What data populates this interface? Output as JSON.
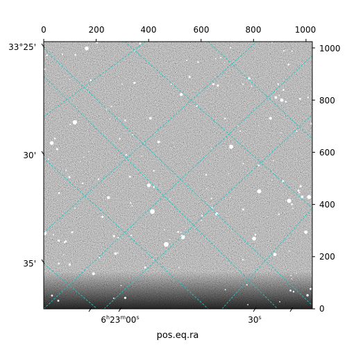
{
  "figure": {
    "xlabel": "pos.eq.ra",
    "pixel_axes": {
      "x_ticks": [
        "0",
        "200",
        "400",
        "600",
        "800",
        "1000"
      ],
      "y_ticks": [
        "0",
        "200",
        "400",
        "600",
        "800",
        "1000"
      ],
      "x_values": [
        0,
        200,
        400,
        600,
        800,
        1000
      ],
      "y_values": [
        0,
        200,
        400,
        600,
        800,
        1000
      ],
      "xlim": [
        0,
        1024
      ],
      "ylim": [
        0,
        1024
      ]
    },
    "world_axes": {
      "dec_ticks": [
        "33°25'",
        "30'",
        "35'"
      ],
      "ra_ticks": [
        {
          "prefix": "6",
          "h": "h",
          "mid": "23",
          "m": "m",
          "main": "00",
          "s": "s"
        },
        {
          "prefix": "",
          "h": "",
          "mid": "",
          "m": "",
          "main": "30",
          "s": "s"
        }
      ]
    },
    "colors": {
      "grid": "#19c9c6",
      "frame": "#000000",
      "sky_background": "#7a7a7a"
    },
    "image_description_tag": "grayscale-star-field"
  }
}
